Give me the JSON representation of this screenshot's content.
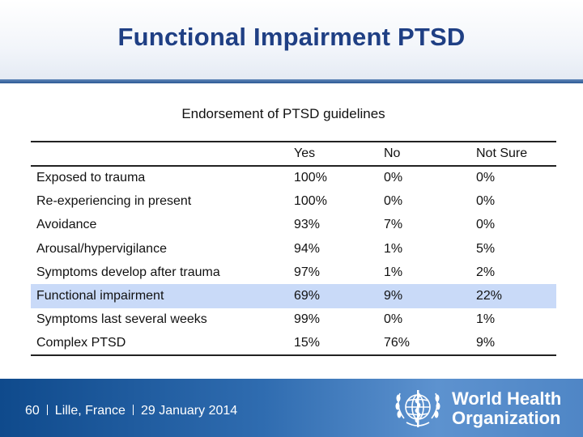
{
  "slide": {
    "title": "Functional Impairment PTSD",
    "subtitle": "Endorsement of PTSD guidelines"
  },
  "table": {
    "columns": [
      "",
      "Yes",
      "No",
      "Not Sure"
    ],
    "rows": [
      {
        "label": "Exposed to trauma",
        "yes": "100%",
        "no": "0%",
        "not_sure": "0%"
      },
      {
        "label": "Re-experiencing in present",
        "yes": "100%",
        "no": "0%",
        "not_sure": "0%"
      },
      {
        "label": "Avoidance",
        "yes": "93%",
        "no": "7%",
        "not_sure": "0%"
      },
      {
        "label": "Arousal/hypervigilance",
        "yes": "94%",
        "no": "1%",
        "not_sure": "5%"
      },
      {
        "label": "Symptoms develop after trauma",
        "yes": "97%",
        "no": "1%",
        "not_sure": "2%"
      },
      {
        "label": "Functional impairment",
        "yes": "69%",
        "no": "9%",
        "not_sure": "22%"
      },
      {
        "label": "Symptoms last several weeks",
        "yes": "99%",
        "no": "0%",
        "not_sure": "1%"
      },
      {
        "label": "Complex PTSD",
        "yes": "15%",
        "no": "76%",
        "not_sure": "9%"
      }
    ],
    "highlight_color": "#c9daf8"
  },
  "footer": {
    "page_number": "60",
    "location": "Lille, France",
    "date": "29 January 2014",
    "org_line1": "World Health",
    "org_line2": "Organization",
    "emblem_icon": "who-emblem-icon",
    "background_color": "#1f5fa3"
  },
  "colors": {
    "title": "#1f3f84",
    "header_rule": "#3a6aa6"
  }
}
